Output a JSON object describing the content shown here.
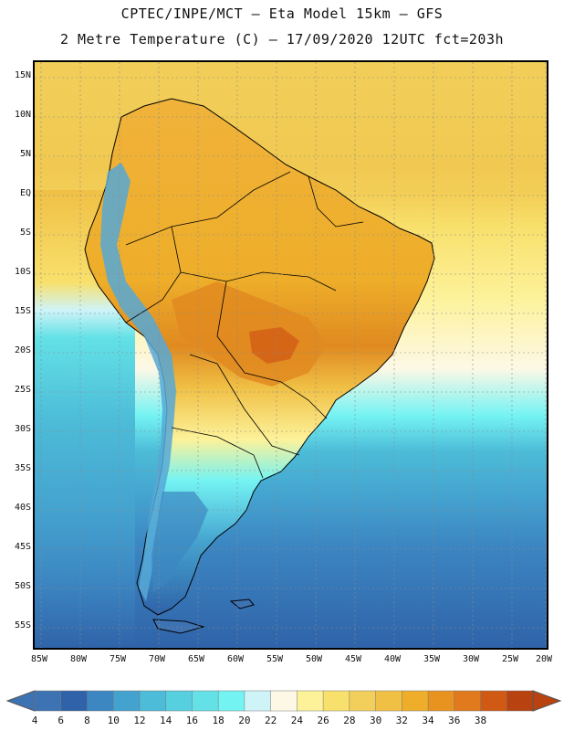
{
  "header": {
    "line1": "CPTEC/INPE/MCT –  Eta Model 15km – GFS",
    "line2": "2 Metre Temperature (C) – 17/09/2020 12UTC fct=203h"
  },
  "axes": {
    "lat_labels": [
      "15N",
      "10N",
      "5N",
      "EQ",
      "5S",
      "10S",
      "15S",
      "20S",
      "25S",
      "30S",
      "35S",
      "40S",
      "45S",
      "50S",
      "55S"
    ],
    "lon_labels": [
      "85W",
      "80W",
      "75W",
      "70W",
      "65W",
      "60W",
      "55W",
      "50W",
      "45W",
      "40W",
      "35W",
      "30W",
      "25W",
      "20W"
    ]
  },
  "colorbar": {
    "levels": [
      "4",
      "6",
      "8",
      "10",
      "12",
      "14",
      "16",
      "18",
      "20",
      "22",
      "24",
      "26",
      "28",
      "30",
      "32",
      "34",
      "36",
      "38"
    ],
    "colors": [
      "#3e73b3",
      "#2f62a8",
      "#3c86c2",
      "#44a2cf",
      "#4dbcd8",
      "#56cfde",
      "#63e1e6",
      "#74f3f3",
      "#cff4f8",
      "#fdf8e6",
      "#fdf29a",
      "#f8e06c",
      "#f2cf5a",
      "#f0c045",
      "#eeae2a",
      "#e89220",
      "#e07a1c",
      "#d05a14",
      "#b84210"
    ],
    "low_arrow_color": "#3e73b3",
    "high_arrow_color": "#b84210"
  },
  "map": {
    "ocean_south_color": "#2f62a8",
    "ocean_mid_color": "#3aa6d0",
    "ocean_warm_color": "#4dbcd8",
    "northern_sea_color": "#f2cf5a",
    "land_warm_color": "#f0b23a",
    "land_hot_color": "#e08a20",
    "andes_color": "#56a8d6",
    "coast_color": "#000000",
    "grid_color": "#8a8a8a"
  }
}
